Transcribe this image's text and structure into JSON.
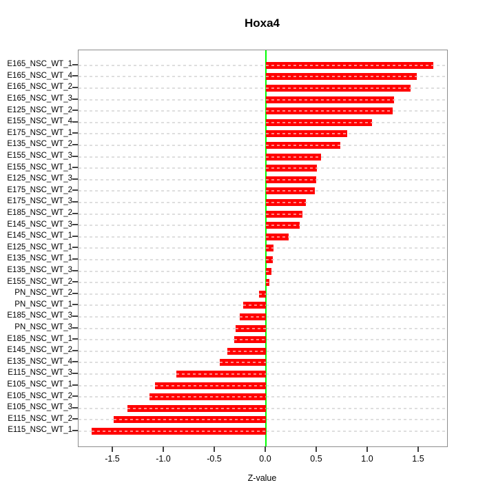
{
  "chart_data": {
    "type": "bar",
    "orientation": "horizontal",
    "title": "Hoxa4",
    "xlabel": "Z-value",
    "ylabel": "",
    "bar_color": "#ff0000",
    "zero_line_color": "#00ff00",
    "gridline_style": "dashed",
    "xlim": [
      -1.84,
      1.78
    ],
    "x_tick_values": [
      -1.5,
      -1.0,
      -0.5,
      0.0,
      0.5,
      1.0,
      1.5
    ],
    "x_tick_labels": [
      "-1.5",
      "-1.0",
      "-0.5",
      "0.0",
      "0.5",
      "1.0",
      "1.5"
    ],
    "categories": [
      "E165_NSC_WT_1",
      "E165_NSC_WT_4",
      "E165_NSC_WT_2",
      "E165_NSC_WT_3",
      "E125_NSC_WT_2",
      "E155_NSC_WT_4",
      "E175_NSC_WT_1",
      "E135_NSC_WT_2",
      "E155_NSC_WT_3",
      "E155_NSC_WT_1",
      "E125_NSC_WT_3",
      "E175_NSC_WT_2",
      "E175_NSC_WT_3",
      "E185_NSC_WT_2",
      "E145_NSC_WT_3",
      "E145_NSC_WT_1",
      "E125_NSC_WT_1",
      "E135_NSC_WT_1",
      "E135_NSC_WT_3",
      "E155_NSC_WT_2",
      "PN_NSC_WT_2",
      "PN_NSC_WT_1",
      "E185_NSC_WT_3",
      "PN_NSC_WT_3",
      "E185_NSC_WT_1",
      "E145_NSC_WT_2",
      "E135_NSC_WT_4",
      "E115_NSC_WT_3",
      "E105_NSC_WT_1",
      "E105_NSC_WT_2",
      "E105_NSC_WT_3",
      "E115_NSC_WT_2",
      "E115_NSC_WT_1"
    ],
    "values": [
      1.64,
      1.48,
      1.42,
      1.26,
      1.24,
      1.04,
      0.8,
      0.73,
      0.54,
      0.5,
      0.49,
      0.48,
      0.39,
      0.36,
      0.33,
      0.22,
      0.075,
      0.07,
      0.055,
      0.035,
      -0.07,
      -0.22,
      -0.26,
      -0.3,
      -0.31,
      -0.38,
      -0.45,
      -0.88,
      -1.09,
      -1.14,
      -1.36,
      -1.49,
      -1.71
    ]
  }
}
